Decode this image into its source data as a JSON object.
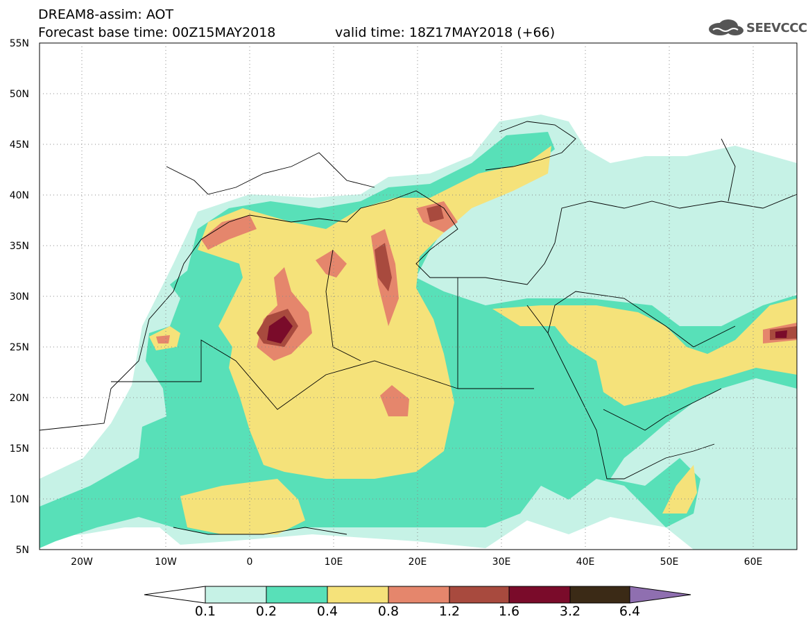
{
  "header": {
    "title": "DREAM8-assim: AOT",
    "base_time": "Forecast base time: 00Z15MAY2018",
    "valid_time": "valid time: 18Z17MAY2018 (+66)"
  },
  "logo": {
    "text": "SEEVCCC",
    "icon": "cloud-icon"
  },
  "axes": {
    "lat_labels": [
      "55N",
      "50N",
      "45N",
      "40N",
      "35N",
      "30N",
      "25N",
      "20N",
      "15N",
      "10N",
      "5N"
    ],
    "lon_labels": [
      "20W",
      "10W",
      "0",
      "10E",
      "20E",
      "30E",
      "40E",
      "50E",
      "60E"
    ]
  },
  "colorbar": {
    "levels": [
      "0.1",
      "0.2",
      "0.4",
      "0.8",
      "1.2",
      "1.6",
      "3.2",
      "6.4"
    ],
    "colors": [
      "#ffffff",
      "#c6f2e6",
      "#58e0b8",
      "#f5e27a",
      "#e5866c",
      "#a84a3e",
      "#7a0b2a",
      "#3b2a16",
      "#8f6fb0"
    ]
  }
}
